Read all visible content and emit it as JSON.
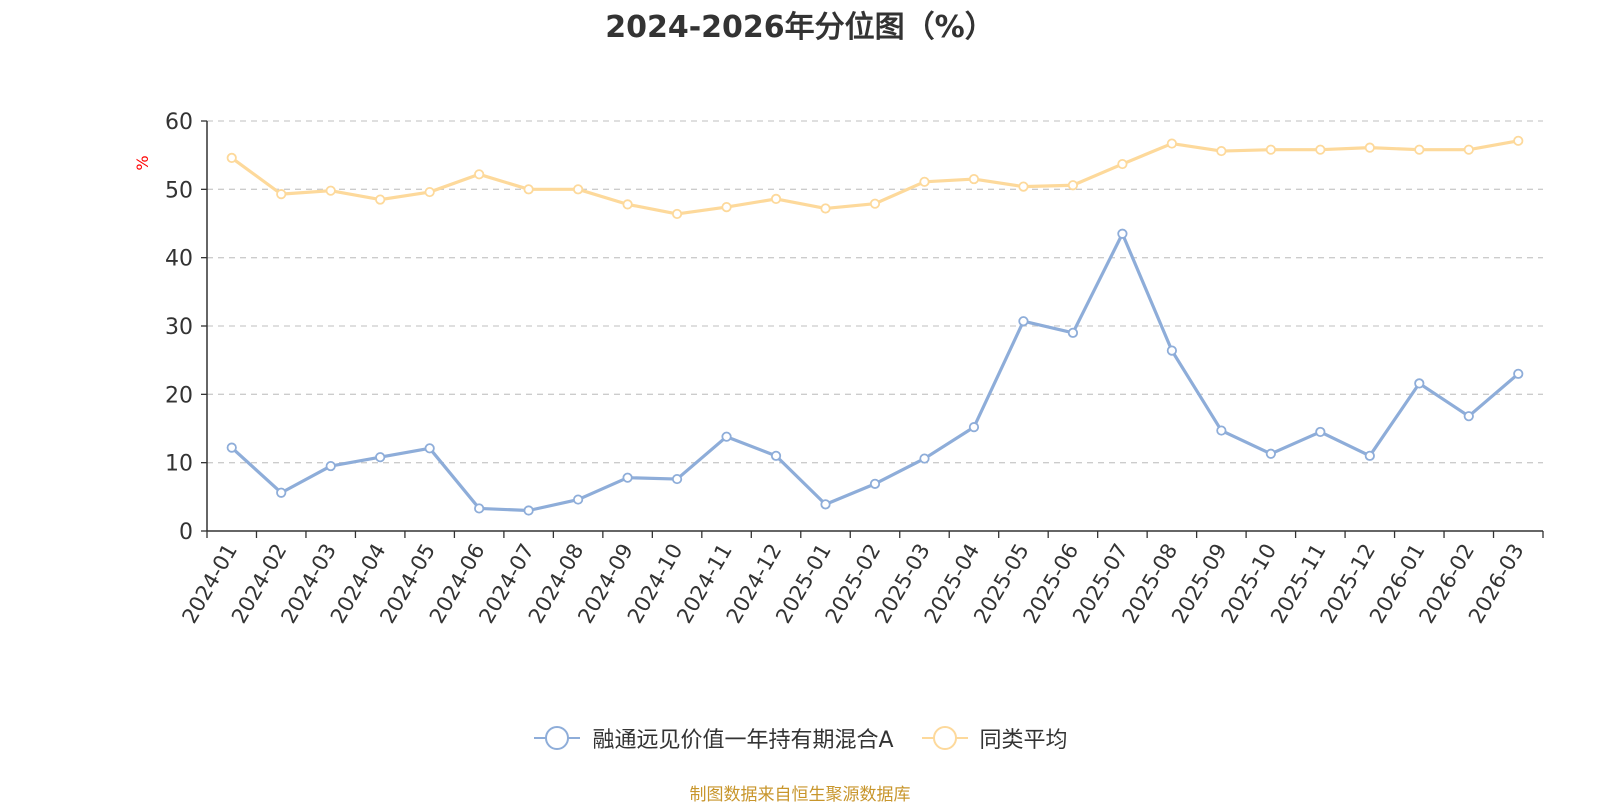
{
  "chart_data": {
    "type": "line",
    "title": "2024-2026年分位图（%）",
    "ylabel": "%",
    "xlabel": "",
    "ylim": [
      0,
      60
    ],
    "yticks": [
      0,
      10,
      20,
      30,
      40,
      50,
      60
    ],
    "grid": true,
    "legend_position": "bottom",
    "categories": [
      "2024-01",
      "2024-02",
      "2024-03",
      "2024-04",
      "2024-05",
      "2024-06",
      "2024-07",
      "2024-08",
      "2024-09",
      "2024-10",
      "2024-11",
      "2024-12",
      "2025-01",
      "2025-02",
      "2025-03",
      "2025-04",
      "2025-05",
      "2025-06",
      "2025-07",
      "2025-08",
      "2025-09",
      "2025-10",
      "2025-11",
      "2025-12",
      "2026-01",
      "2026-02",
      "2026-03"
    ],
    "series": [
      {
        "name": "融通远见价值一年持有期混合A",
        "color": "#8eadd9",
        "values": [
          12.2,
          5.6,
          9.5,
          10.8,
          12.1,
          3.3,
          3.0,
          4.6,
          7.8,
          7.6,
          13.8,
          11.0,
          3.9,
          6.9,
          10.6,
          15.2,
          30.7,
          29.0,
          43.5,
          26.4,
          14.7,
          11.3,
          14.5,
          11.0,
          21.6,
          16.8,
          23.0
        ]
      },
      {
        "name": "同类平均",
        "color": "#fdd99b",
        "values": [
          54.6,
          49.3,
          49.8,
          48.5,
          49.6,
          52.2,
          50.0,
          50.0,
          47.8,
          46.4,
          47.4,
          48.6,
          47.2,
          47.9,
          51.1,
          51.5,
          50.4,
          50.6,
          53.7,
          56.7,
          55.6,
          55.8,
          55.8,
          56.1,
          55.8,
          55.8,
          57.1
        ]
      }
    ]
  },
  "source": "制图数据来自恒生聚源数据库"
}
